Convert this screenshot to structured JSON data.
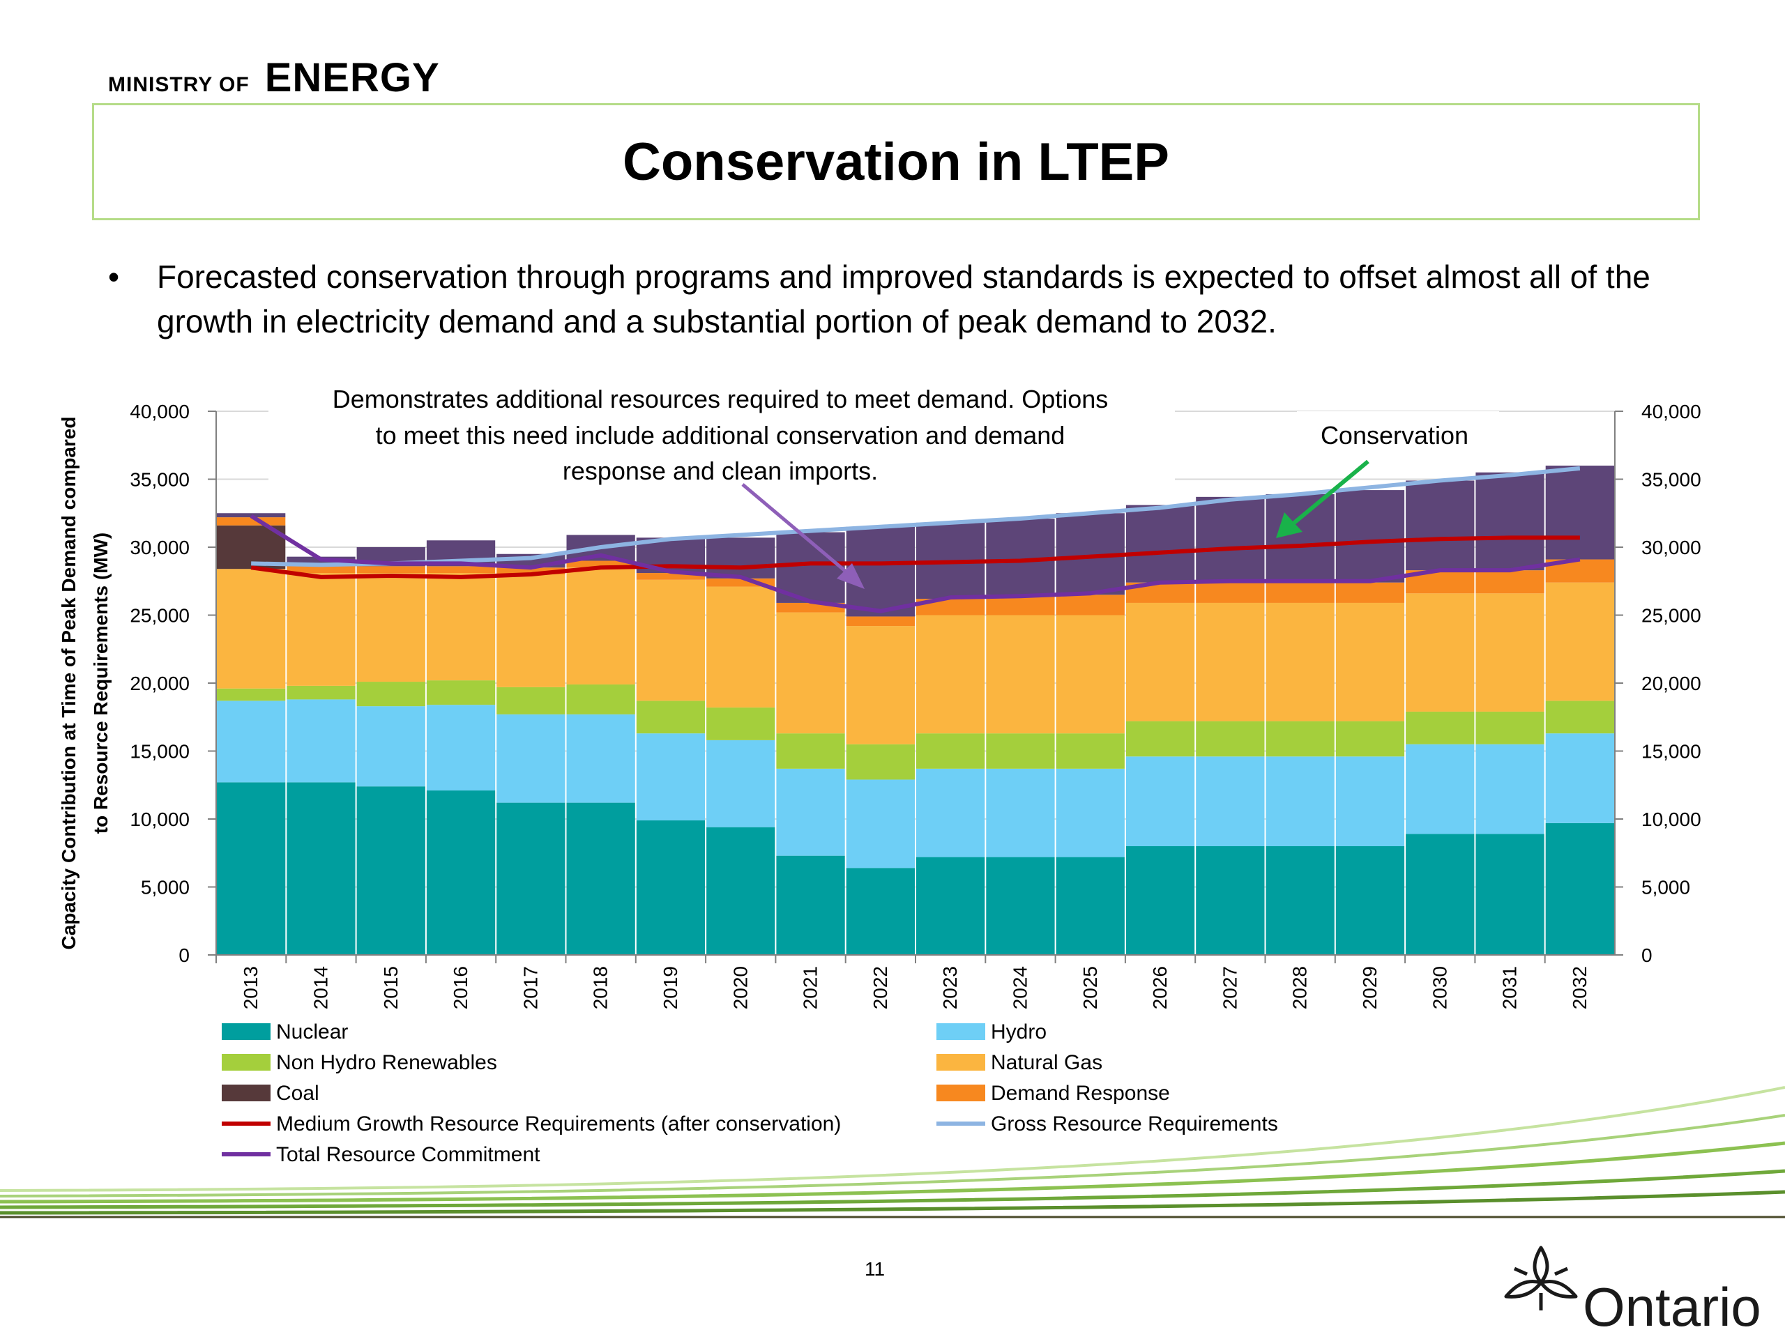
{
  "header": {
    "ministry_small": "MINISTRY OF",
    "ministry_large": "ENERGY"
  },
  "slide": {
    "title": "Conservation in LTEP",
    "bullet_symbol": "•",
    "bullet": "Forecasted conservation through programs and improved standards is expected to offset almost all of the growth in electricity demand and a substantial portion of peak demand to 2032.",
    "page_number": "11",
    "logo_text": "Ontario"
  },
  "colors": {
    "nuclear": "#009e9e",
    "hydro": "#6ecff6",
    "renewables": "#a4cf3c",
    "gas": "#fbb540",
    "coal": "#56393a",
    "demand_response": "#f7881f",
    "conservation": "#5d4578",
    "medium_growth": "#c00000",
    "gross": "#8db4e2",
    "total": "#7030a0",
    "arrow_green": "#19b24a",
    "arrow_purple": "#8e5fb8",
    "rule_green": "#b5dc88"
  },
  "chart_data": {
    "type": "bar",
    "stacked": true,
    "ylabel": "Capacity Contribution at Time of Peak Demand compared to Resource Requirements (MW)",
    "ylim": [
      0,
      40000
    ],
    "yticks": [
      "0",
      "5,000",
      "10,000",
      "15,000",
      "20,000",
      "25,000",
      "30,000",
      "35,000",
      "40,000"
    ],
    "categories": [
      "2013",
      "2014",
      "2015",
      "2016",
      "2017",
      "2018",
      "2019",
      "2020",
      "2021",
      "2022",
      "2023",
      "2024",
      "2025",
      "2026",
      "2027",
      "2028",
      "2029",
      "2030",
      "2031",
      "2032"
    ],
    "series": [
      {
        "name": "Nuclear",
        "key": "nuclear",
        "values": [
          12700,
          12700,
          12400,
          12100,
          11200,
          11200,
          9900,
          9400,
          7300,
          6400,
          7200,
          7200,
          7200,
          8000,
          8000,
          8000,
          8000,
          8900,
          8900,
          9700
        ]
      },
      {
        "name": "Hydro",
        "key": "hydro",
        "values": [
          6000,
          6100,
          5900,
          6300,
          6500,
          6500,
          6400,
          6400,
          6400,
          6500,
          6500,
          6500,
          6500,
          6600,
          6600,
          6600,
          6600,
          6600,
          6600,
          6600
        ]
      },
      {
        "name": "Non Hydro Renewables",
        "key": "renewables",
        "values": [
          900,
          1000,
          1800,
          1800,
          2000,
          2200,
          2400,
          2400,
          2600,
          2600,
          2600,
          2600,
          2600,
          2600,
          2600,
          2600,
          2600,
          2400,
          2400,
          2400
        ]
      },
      {
        "name": "Natural Gas",
        "key": "gas",
        "values": [
          8800,
          8300,
          8000,
          7900,
          8300,
          8600,
          8900,
          8900,
          8900,
          8700,
          8700,
          8700,
          8700,
          8700,
          8700,
          8700,
          8700,
          8700,
          8700,
          8700
        ]
      },
      {
        "name": "Coal",
        "key": "coal",
        "values": [
          3200,
          0,
          0,
          0,
          0,
          0,
          0,
          0,
          0,
          0,
          0,
          0,
          0,
          0,
          0,
          0,
          0,
          0,
          0,
          0
        ]
      },
      {
        "name": "Demand Response",
        "key": "demand_response",
        "values": [
          600,
          500,
          500,
          500,
          500,
          500,
          500,
          600,
          700,
          700,
          1200,
          1500,
          1500,
          1500,
          1500,
          1500,
          1500,
          1700,
          1700,
          1700
        ]
      },
      {
        "name": "Conservation",
        "key": "conservation",
        "values": [
          300,
          700,
          1400,
          1900,
          1000,
          1900,
          2600,
          3000,
          5200,
          6600,
          5600,
          5600,
          6000,
          5700,
          6300,
          6500,
          6800,
          6600,
          7200,
          6900
        ]
      }
    ],
    "lines": [
      {
        "name": "Medium Growth Resource Requirements (after conservation)",
        "key": "medium_growth",
        "values": [
          28500,
          27800,
          27900,
          27800,
          28000,
          28500,
          28600,
          28500,
          28800,
          28800,
          28900,
          29000,
          29300,
          29600,
          29900,
          30100,
          30400,
          30600,
          30700,
          30700
        ]
      },
      {
        "name": "Gross Resource Requirements",
        "key": "gross",
        "values": [
          28800,
          28700,
          28800,
          29000,
          29200,
          30000,
          30600,
          30900,
          31200,
          31500,
          31800,
          32100,
          32500,
          32900,
          33500,
          33900,
          34400,
          34900,
          35300,
          35800
        ]
      },
      {
        "name": "Total Resource Commitment",
        "key": "total",
        "values": [
          32300,
          29100,
          28800,
          28800,
          28500,
          29400,
          28200,
          27800,
          26000,
          25300,
          26300,
          26400,
          26600,
          27400,
          27500,
          27500,
          27500,
          28300,
          28300,
          29100
        ]
      }
    ],
    "legend": [
      {
        "label": "Nuclear",
        "key": "nuclear",
        "kind": "box"
      },
      {
        "label": "Hydro",
        "key": "hydro",
        "kind": "box"
      },
      {
        "label": "Non Hydro Renewables",
        "key": "renewables",
        "kind": "box"
      },
      {
        "label": "Natural Gas",
        "key": "gas",
        "kind": "box"
      },
      {
        "label": "Coal",
        "key": "coal",
        "kind": "box"
      },
      {
        "label": "Demand Response",
        "key": "demand_response",
        "kind": "box"
      },
      {
        "label": "Medium Growth Resource Requirements (after conservation)",
        "key": "medium_growth",
        "kind": "line"
      },
      {
        "label": "Gross Resource Requirements",
        "key": "gross",
        "kind": "line"
      },
      {
        "label": "Total Resource Commitment",
        "key": "total",
        "kind": "line"
      }
    ],
    "legend_position": "bottom",
    "annotations": [
      {
        "lines": [
          "Demonstrates additional resources required to meet demand. Options",
          "to meet this need  include additional conservation and demand",
          "response and clean imports."
        ]
      },
      {
        "lines": [
          "Conservation"
        ]
      }
    ]
  }
}
